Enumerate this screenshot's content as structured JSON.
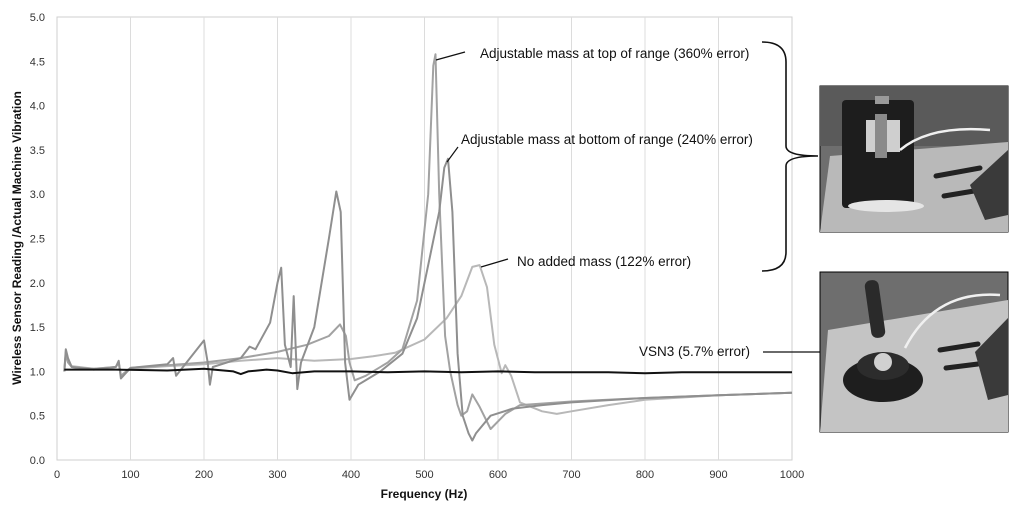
{
  "chart_data": {
    "type": "line",
    "xlabel": "Frequency (Hz)",
    "ylabel": "Wireless Sensor Reading /Actual Machine Vibration",
    "xlim": [
      0,
      1000
    ],
    "ylim": [
      0,
      5
    ],
    "x_ticks": [
      "0",
      "100",
      "200",
      "300",
      "400",
      "500",
      "600",
      "700",
      "800",
      "900",
      "1000"
    ],
    "y_ticks": [
      "0.0",
      "0.5",
      "1.0",
      "1.5",
      "2.0",
      "2.5",
      "3.0",
      "3.5",
      "4.0",
      "4.5",
      "5.0"
    ],
    "grid": "vertical",
    "series": [
      {
        "color": "#b8b8b8",
        "points": [
          [
            10,
            1.0
          ],
          [
            12,
            1.22
          ],
          [
            15,
            1.12
          ],
          [
            20,
            1.06
          ],
          [
            50,
            1.03
          ],
          [
            80,
            1.05
          ],
          [
            84,
            1.1
          ],
          [
            87,
            0.95
          ],
          [
            100,
            1.03
          ],
          [
            150,
            1.06
          ],
          [
            200,
            1.08
          ],
          [
            250,
            1.12
          ],
          [
            300,
            1.15
          ],
          [
            350,
            1.12
          ],
          [
            400,
            1.14
          ],
          [
            430,
            1.17
          ],
          [
            460,
            1.21
          ],
          [
            500,
            1.36
          ],
          [
            530,
            1.6
          ],
          [
            550,
            1.85
          ],
          [
            565,
            2.18
          ],
          [
            575,
            2.2
          ],
          [
            585,
            1.95
          ],
          [
            595,
            1.3
          ],
          [
            605,
            0.98
          ],
          [
            610,
            1.07
          ],
          [
            618,
            0.95
          ],
          [
            630,
            0.65
          ],
          [
            660,
            0.55
          ],
          [
            680,
            0.52
          ],
          [
            700,
            0.55
          ],
          [
            750,
            0.62
          ],
          [
            800,
            0.68
          ],
          [
            900,
            0.73
          ],
          [
            1000,
            0.76
          ]
        ]
      },
      {
        "color": "#a2a2a2",
        "points": [
          [
            10,
            1.0
          ],
          [
            12,
            1.2
          ],
          [
            15,
            1.1
          ],
          [
            20,
            1.05
          ],
          [
            50,
            1.03
          ],
          [
            80,
            1.05
          ],
          [
            84,
            1.1
          ],
          [
            87,
            0.95
          ],
          [
            100,
            1.04
          ],
          [
            150,
            1.07
          ],
          [
            200,
            1.1
          ],
          [
            250,
            1.15
          ],
          [
            300,
            1.22
          ],
          [
            340,
            1.3
          ],
          [
            370,
            1.4
          ],
          [
            385,
            1.53
          ],
          [
            393,
            1.4
          ],
          [
            398,
            1.1
          ],
          [
            405,
            0.9
          ],
          [
            420,
            0.95
          ],
          [
            450,
            1.1
          ],
          [
            470,
            1.25
          ],
          [
            490,
            1.8
          ],
          [
            505,
            3.0
          ],
          [
            512,
            4.45
          ],
          [
            515,
            4.58
          ],
          [
            520,
            3.0
          ],
          [
            528,
            1.4
          ],
          [
            535,
            1.0
          ],
          [
            545,
            0.62
          ],
          [
            550,
            0.5
          ],
          [
            558,
            0.55
          ],
          [
            565,
            0.74
          ],
          [
            575,
            0.6
          ],
          [
            590,
            0.35
          ],
          [
            610,
            0.52
          ],
          [
            630,
            0.62
          ],
          [
            700,
            0.66
          ],
          [
            800,
            0.7
          ],
          [
            900,
            0.73
          ],
          [
            1000,
            0.76
          ]
        ]
      },
      {
        "color": "#8f8f8f",
        "points": [
          [
            10,
            1.0
          ],
          [
            12,
            1.25
          ],
          [
            15,
            1.15
          ],
          [
            20,
            1.05
          ],
          [
            50,
            1.02
          ],
          [
            80,
            1.05
          ],
          [
            84,
            1.12
          ],
          [
            87,
            0.92
          ],
          [
            100,
            1.04
          ],
          [
            150,
            1.08
          ],
          [
            158,
            1.15
          ],
          [
            162,
            0.95
          ],
          [
            200,
            1.35
          ],
          [
            205,
            1.1
          ],
          [
            208,
            0.85
          ],
          [
            212,
            1.05
          ],
          [
            250,
            1.15
          ],
          [
            262,
            1.28
          ],
          [
            270,
            1.25
          ],
          [
            290,
            1.55
          ],
          [
            300,
            2.0
          ],
          [
            305,
            2.17
          ],
          [
            310,
            1.3
          ],
          [
            318,
            1.05
          ],
          [
            322,
            1.85
          ],
          [
            327,
            0.8
          ],
          [
            332,
            1.1
          ],
          [
            350,
            1.5
          ],
          [
            370,
            2.5
          ],
          [
            380,
            3.03
          ],
          [
            386,
            2.8
          ],
          [
            392,
            1.1
          ],
          [
            398,
            0.68
          ],
          [
            410,
            0.85
          ],
          [
            440,
            1.0
          ],
          [
            470,
            1.2
          ],
          [
            490,
            1.6
          ],
          [
            505,
            2.2
          ],
          [
            520,
            2.8
          ],
          [
            527,
            3.3
          ],
          [
            532,
            3.4
          ],
          [
            538,
            2.8
          ],
          [
            545,
            1.2
          ],
          [
            552,
            0.5
          ],
          [
            560,
            0.3
          ],
          [
            565,
            0.22
          ],
          [
            570,
            0.3
          ],
          [
            590,
            0.5
          ],
          [
            620,
            0.58
          ],
          [
            660,
            0.62
          ],
          [
            700,
            0.65
          ],
          [
            800,
            0.7
          ],
          [
            900,
            0.73
          ],
          [
            1000,
            0.76
          ]
        ]
      },
      {
        "color": "#111111",
        "points": [
          [
            10,
            1.02
          ],
          [
            50,
            1.02
          ],
          [
            80,
            1.02
          ],
          [
            150,
            1.01
          ],
          [
            200,
            1.03
          ],
          [
            240,
            1.0
          ],
          [
            250,
            0.97
          ],
          [
            260,
            1.0
          ],
          [
            285,
            1.02
          ],
          [
            300,
            1.01
          ],
          [
            320,
            0.98
          ],
          [
            350,
            1.0
          ],
          [
            400,
            1.0
          ],
          [
            450,
            0.99
          ],
          [
            500,
            1.0
          ],
          [
            550,
            0.99
          ],
          [
            600,
            1.0
          ],
          [
            650,
            0.99
          ],
          [
            700,
            0.99
          ],
          [
            750,
            0.99
          ],
          [
            800,
            0.98
          ],
          [
            850,
            0.99
          ],
          [
            900,
            0.99
          ],
          [
            950,
            0.99
          ],
          [
            1000,
            0.99
          ]
        ]
      }
    ],
    "annotations": [
      {
        "text": "Adjustable mass at top of range (360% error)"
      },
      {
        "text": "Adjustable mass at bottom of range (240% error)"
      },
      {
        "text": "No added mass (122% error)"
      },
      {
        "text": "VSN3 (5.7% error)"
      }
    ]
  },
  "photos": [
    {
      "icon": "adjustable-mass-sensor-photo"
    },
    {
      "icon": "vsn3-sensor-photo"
    }
  ]
}
